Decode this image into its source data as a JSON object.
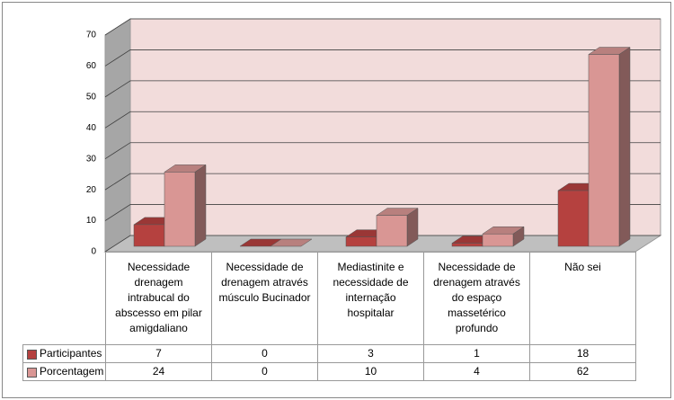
{
  "chart_data": {
    "type": "bar3d",
    "categories": [
      "Necessidade drenagem intrabucal do abscesso em pilar amigdaliano",
      "Necessidade de drenagem através músculo Bucinador",
      "Mediastinite e necessidade de internação hospitalar",
      "Necessidade de drenagem através do espaço massetérico profundo",
      "Não sei"
    ],
    "series": [
      {
        "name": "Participantes",
        "color": "#b5413f",
        "values": [
          7,
          0,
          3,
          1,
          18
        ]
      },
      {
        "name": "Porcentagem",
        "color": "#d99694",
        "values": [
          24,
          0,
          10,
          4,
          62
        ]
      }
    ],
    "ylim": [
      0,
      70
    ],
    "yticks": [
      0,
      10,
      20,
      30,
      40,
      50,
      60,
      70
    ],
    "grid": true
  }
}
